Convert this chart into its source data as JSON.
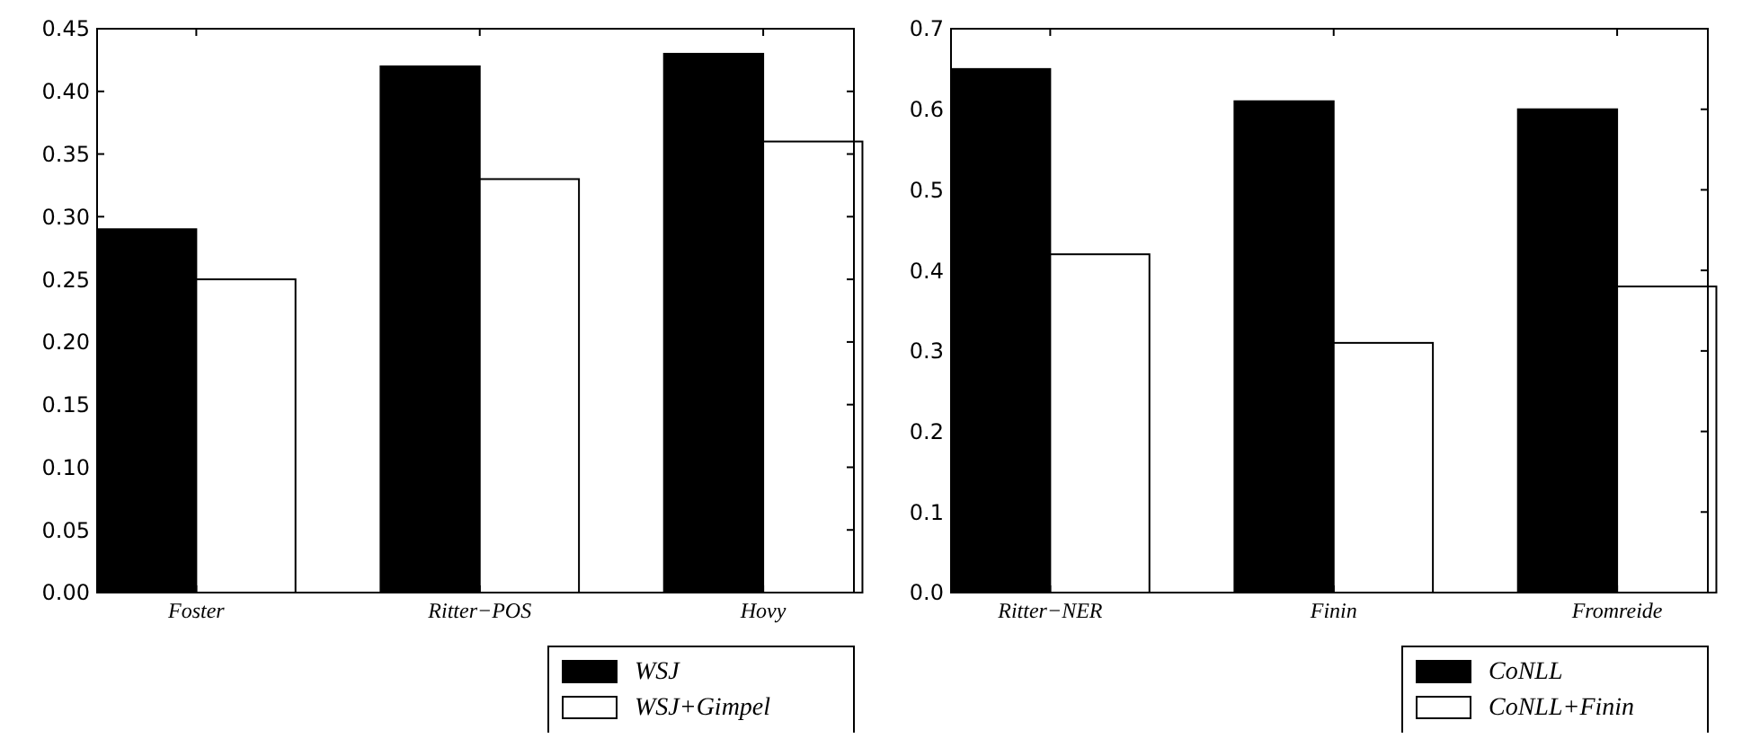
{
  "chart_data": [
    {
      "type": "bar",
      "categories": [
        "Foster",
        "Ritter−POS",
        "Hovy"
      ],
      "series": [
        {
          "name": "WSJ",
          "color": "#000000",
          "values": [
            0.29,
            0.42,
            0.43
          ]
        },
        {
          "name": "WSJ+Gimpel",
          "color": "#ffffff",
          "values": [
            0.25,
            0.33,
            0.36
          ]
        }
      ],
      "ylim": [
        0,
        0.45
      ],
      "yticks": [
        {
          "value": 0,
          "label": "0.00"
        },
        {
          "value": 0.05,
          "label": "0.05"
        },
        {
          "value": 0.1,
          "label": "0.10"
        },
        {
          "value": 0.15,
          "label": "0.15"
        },
        {
          "value": 0.2,
          "label": "0.20"
        },
        {
          "value": 0.25,
          "label": "0.25"
        },
        {
          "value": 0.3,
          "label": "0.30"
        },
        {
          "value": 0.35,
          "label": "0.35"
        },
        {
          "value": 0.4,
          "label": "0.40"
        },
        {
          "value": 0.45,
          "label": "0.45"
        }
      ],
      "grid": false,
      "legend": "bottom right"
    },
    {
      "type": "bar",
      "categories": [
        "Ritter−NER",
        "Finin",
        "Fromreide"
      ],
      "series": [
        {
          "name": "CoNLL",
          "color": "#000000",
          "values": [
            0.65,
            0.61,
            0.6
          ]
        },
        {
          "name": "CoNLL+Finin",
          "color": "#ffffff",
          "values": [
            0.42,
            0.31,
            0.38
          ]
        }
      ],
      "ylim": [
        0,
        0.7
      ],
      "yticks": [
        {
          "value": 0,
          "label": "0.0"
        },
        {
          "value": 0.1,
          "label": "0.1"
        },
        {
          "value": 0.2,
          "label": "0.2"
        },
        {
          "value": 0.3,
          "label": "0.3"
        },
        {
          "value": 0.4,
          "label": "0.4"
        },
        {
          "value": 0.5,
          "label": "0.5"
        },
        {
          "value": 0.6,
          "label": "0.6"
        },
        {
          "value": 0.7,
          "label": "0.7"
        }
      ],
      "grid": false,
      "legend": "bottom right"
    }
  ]
}
